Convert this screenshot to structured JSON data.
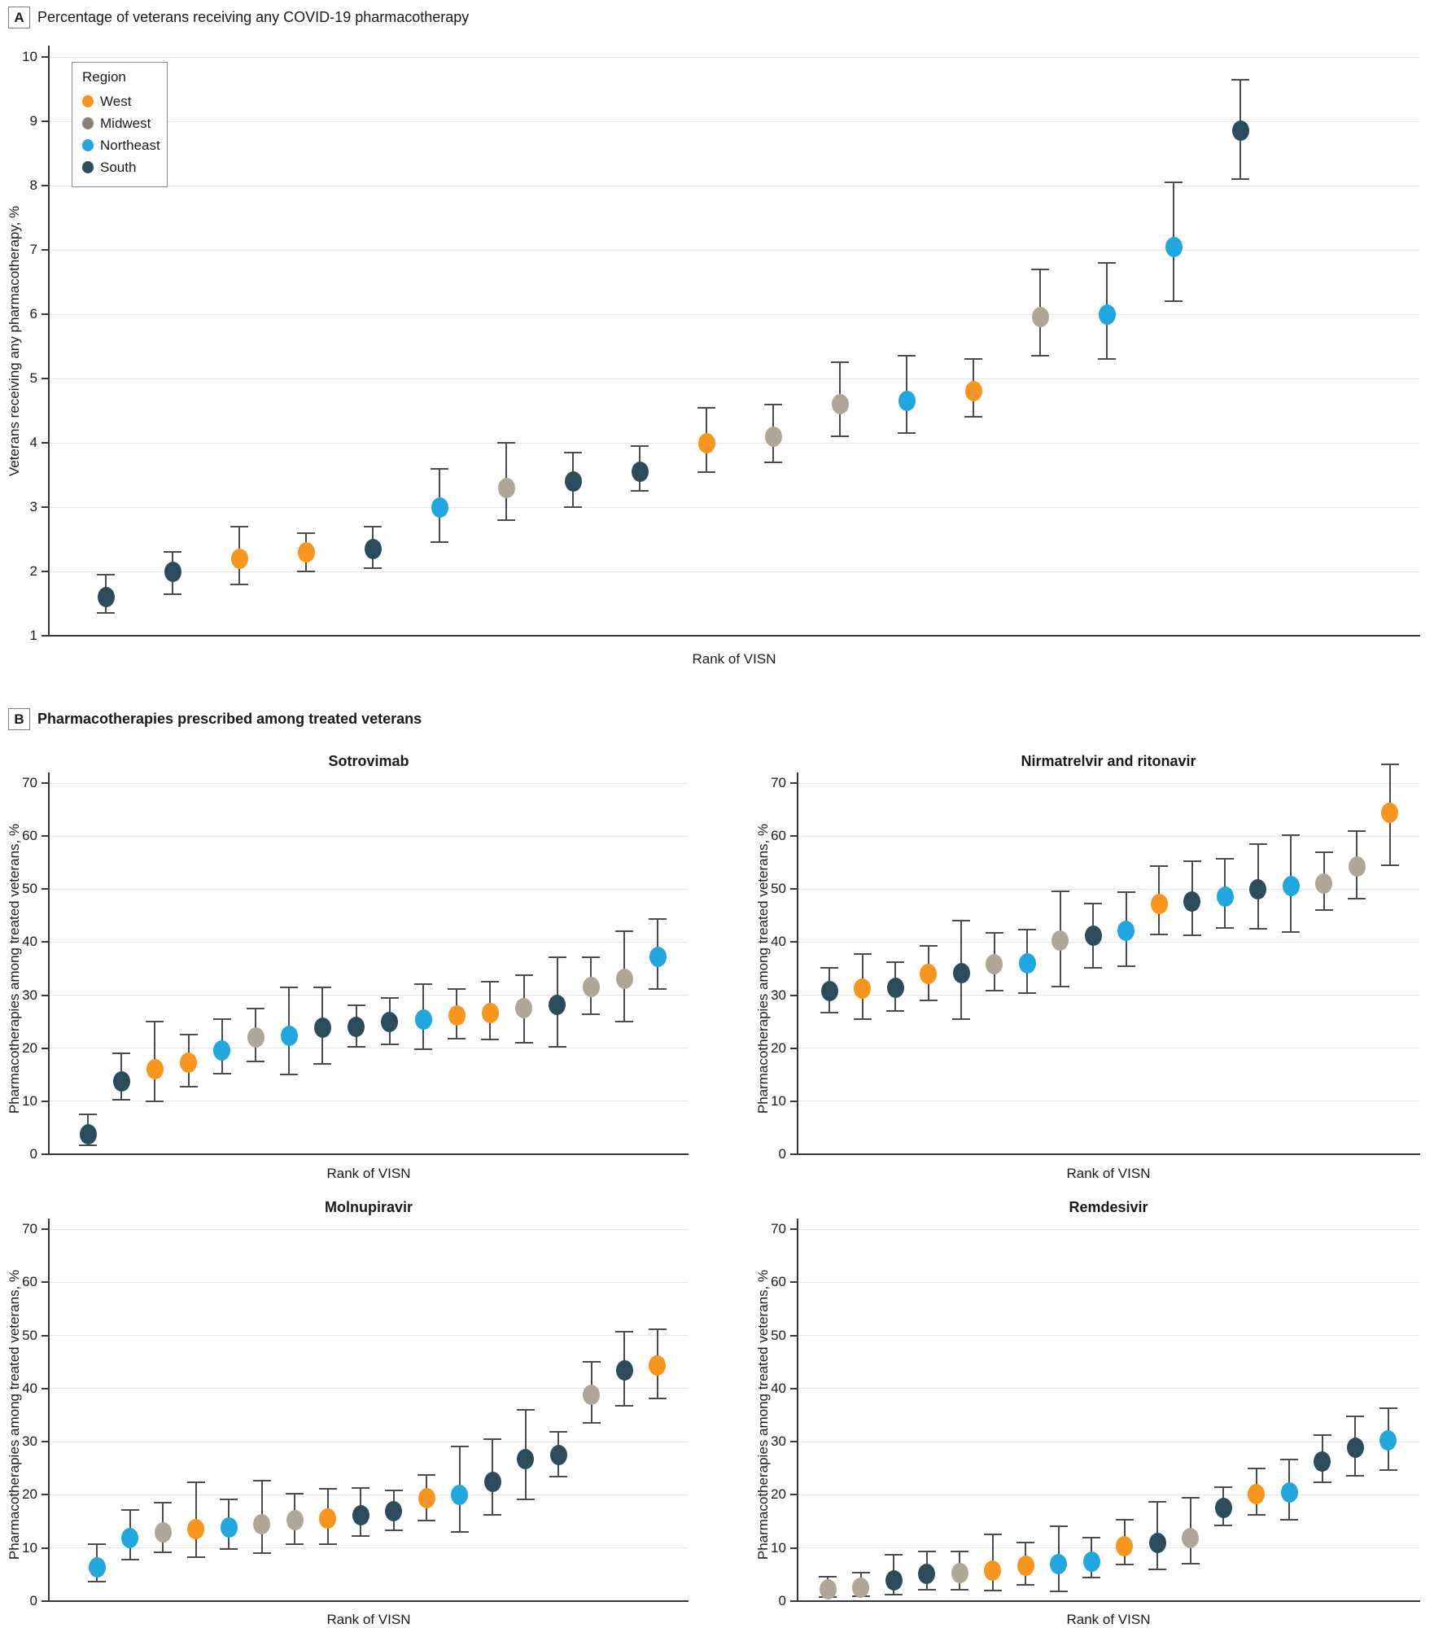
{
  "panelA": {
    "label": "A",
    "header": "Percentage of veterans receiving any COVID-19 pharmacotherapy"
  },
  "panelB": {
    "label": "B",
    "header": "Pharmacotherapies prescribed among treated veterans"
  },
  "legend": {
    "title": "Region",
    "items": [
      {
        "label": "West",
        "color": "#F7951D"
      },
      {
        "label": "Midwest",
        "color": "#8B8274"
      },
      {
        "label": "Northeast",
        "color": "#21A7E0"
      },
      {
        "label": "South",
        "color": "#2B4C5D"
      }
    ]
  },
  "regions": {
    "West": "#F7951D",
    "Midwest": "#B0A695",
    "Northeast": "#21A7E0",
    "South": "#2B4C5D"
  },
  "style_colors": {
    "errorbar": "#4A4B4D",
    "gridline": "#E6E6E6",
    "axis": "#37383A"
  },
  "chart_data": [
    {
      "id": "panel_a",
      "type": "scatter",
      "title": "",
      "xlabel": "Rank of VISN",
      "ylabel": "Veterans receiving any pharmacotherapy, %",
      "ylim": [
        1,
        10
      ],
      "yticks": [
        10,
        9,
        8,
        7,
        6,
        5,
        4,
        3,
        2,
        1
      ],
      "grid": true,
      "legend_position": "top-left-inside",
      "points": [
        {
          "rank": 1,
          "region": "South",
          "value": 1.6,
          "ci": [
            1.35,
            1.95
          ]
        },
        {
          "rank": 2,
          "region": "South",
          "value": 2.0,
          "ci": [
            1.65,
            2.3
          ]
        },
        {
          "rank": 3,
          "region": "West",
          "value": 2.2,
          "ci": [
            1.8,
            2.7
          ]
        },
        {
          "rank": 4,
          "region": "West",
          "value": 2.3,
          "ci": [
            2.0,
            2.6
          ]
        },
        {
          "rank": 5,
          "region": "South",
          "value": 2.35,
          "ci": [
            2.05,
            2.7
          ]
        },
        {
          "rank": 6,
          "region": "Northeast",
          "value": 3.0,
          "ci": [
            2.45,
            3.6
          ]
        },
        {
          "rank": 7,
          "region": "Midwest",
          "value": 3.3,
          "ci": [
            2.8,
            4.0
          ]
        },
        {
          "rank": 8,
          "region": "South",
          "value": 3.4,
          "ci": [
            3.0,
            3.85
          ]
        },
        {
          "rank": 9,
          "region": "South",
          "value": 3.55,
          "ci": [
            3.25,
            3.95
          ]
        },
        {
          "rank": 10,
          "region": "West",
          "value": 4.0,
          "ci": [
            3.55,
            4.55
          ]
        },
        {
          "rank": 11,
          "region": "Midwest",
          "value": 4.1,
          "ci": [
            3.7,
            4.6
          ]
        },
        {
          "rank": 12,
          "region": "Midwest",
          "value": 4.6,
          "ci": [
            4.1,
            5.25
          ]
        },
        {
          "rank": 13,
          "region": "Northeast",
          "value": 4.65,
          "ci": [
            4.15,
            5.35
          ]
        },
        {
          "rank": 14,
          "region": "West",
          "value": 4.8,
          "ci": [
            4.4,
            5.3
          ]
        },
        {
          "rank": 15,
          "region": "Midwest",
          "value": 5.95,
          "ci": [
            5.35,
            6.7
          ]
        },
        {
          "rank": 16,
          "region": "Northeast",
          "value": 6.0,
          "ci": [
            5.3,
            6.8
          ]
        },
        {
          "rank": 17,
          "region": "Northeast",
          "value": 7.05,
          "ci": [
            6.2,
            8.05
          ]
        },
        {
          "rank": 18,
          "region": "South",
          "value": 8.85,
          "ci": [
            8.1,
            9.65
          ]
        }
      ]
    },
    {
      "id": "sotrovimab",
      "type": "scatter",
      "title": "Sotrovimab",
      "xlabel": "Rank of VISN",
      "ylabel": "Pharmacotherapies among  treated veterans, %",
      "ylim": [
        0,
        70
      ],
      "yticks": [
        70,
        60,
        50,
        40,
        30,
        20,
        10,
        0
      ],
      "grid": true,
      "points": [
        {
          "rank": 1,
          "region": "South",
          "value": 3.7,
          "ci": [
            1.7,
            7.5
          ]
        },
        {
          "rank": 2,
          "region": "South",
          "value": 13.8,
          "ci": [
            10.3,
            19.0
          ]
        },
        {
          "rank": 3,
          "region": "West",
          "value": 16.0,
          "ci": [
            10.0,
            25.0
          ]
        },
        {
          "rank": 4,
          "region": "West",
          "value": 17.2,
          "ci": [
            12.8,
            22.5
          ]
        },
        {
          "rank": 5,
          "region": "Northeast",
          "value": 19.6,
          "ci": [
            15.2,
            25.5
          ]
        },
        {
          "rank": 6,
          "region": "Midwest",
          "value": 22.0,
          "ci": [
            17.5,
            27.5
          ]
        },
        {
          "rank": 7,
          "region": "Northeast",
          "value": 22.4,
          "ci": [
            15.0,
            31.5
          ]
        },
        {
          "rank": 8,
          "region": "South",
          "value": 23.8,
          "ci": [
            17.0,
            31.5
          ]
        },
        {
          "rank": 9,
          "region": "South",
          "value": 24.0,
          "ci": [
            20.3,
            28.1
          ]
        },
        {
          "rank": 10,
          "region": "South",
          "value": 24.9,
          "ci": [
            20.8,
            29.5
          ]
        },
        {
          "rank": 11,
          "region": "Northeast",
          "value": 25.4,
          "ci": [
            19.8,
            32.1
          ]
        },
        {
          "rank": 12,
          "region": "West",
          "value": 26.2,
          "ci": [
            21.8,
            31.1
          ]
        },
        {
          "rank": 13,
          "region": "West",
          "value": 26.6,
          "ci": [
            21.6,
            32.6
          ]
        },
        {
          "rank": 14,
          "region": "Midwest",
          "value": 27.5,
          "ci": [
            21.1,
            33.8
          ]
        },
        {
          "rank": 15,
          "region": "South",
          "value": 28.2,
          "ci": [
            20.2,
            37.2
          ]
        },
        {
          "rank": 16,
          "region": "Midwest",
          "value": 31.6,
          "ci": [
            26.4,
            37.2
          ]
        },
        {
          "rank": 17,
          "region": "Midwest",
          "value": 33.1,
          "ci": [
            25.0,
            42.0
          ]
        },
        {
          "rank": 18,
          "region": "Northeast",
          "value": 37.3,
          "ci": [
            31.1,
            44.3
          ]
        }
      ]
    },
    {
      "id": "nirmatrelvir",
      "type": "scatter",
      "title": "Nirmatrelvir and ritonavir",
      "xlabel": "Rank of VISN",
      "ylabel": "Pharmacotherapies among  treated veterans, %",
      "ylim": [
        0,
        70
      ],
      "yticks": [
        70,
        60,
        50,
        40,
        30,
        20,
        10,
        0
      ],
      "grid": true,
      "points": [
        {
          "rank": 1,
          "region": "South",
          "value": 30.8,
          "ci": [
            26.7,
            35.2
          ]
        },
        {
          "rank": 2,
          "region": "West",
          "value": 31.2,
          "ci": [
            25.5,
            37.8
          ]
        },
        {
          "rank": 3,
          "region": "South",
          "value": 31.4,
          "ci": [
            27.0,
            36.2
          ]
        },
        {
          "rank": 4,
          "region": "West",
          "value": 34.0,
          "ci": [
            29.0,
            39.3
          ]
        },
        {
          "rank": 5,
          "region": "South",
          "value": 34.2,
          "ci": [
            25.5,
            44.0
          ]
        },
        {
          "rank": 6,
          "region": "Midwest",
          "value": 35.9,
          "ci": [
            30.8,
            41.8
          ]
        },
        {
          "rank": 7,
          "region": "Northeast",
          "value": 36.0,
          "ci": [
            30.4,
            42.4
          ]
        },
        {
          "rank": 8,
          "region": "Midwest",
          "value": 40.3,
          "ci": [
            31.6,
            49.6
          ]
        },
        {
          "rank": 9,
          "region": "South",
          "value": 41.2,
          "ci": [
            35.2,
            47.3
          ]
        },
        {
          "rank": 10,
          "region": "Northeast",
          "value": 42.2,
          "ci": [
            35.4,
            49.5
          ]
        },
        {
          "rank": 11,
          "region": "West",
          "value": 47.2,
          "ci": [
            41.5,
            54.3
          ]
        },
        {
          "rank": 12,
          "region": "South",
          "value": 47.6,
          "ci": [
            41.3,
            55.2
          ]
        },
        {
          "rank": 13,
          "region": "Northeast",
          "value": 48.6,
          "ci": [
            42.7,
            55.8
          ]
        },
        {
          "rank": 14,
          "region": "South",
          "value": 49.9,
          "ci": [
            42.5,
            58.5
          ]
        },
        {
          "rank": 15,
          "region": "Northeast",
          "value": 50.6,
          "ci": [
            41.9,
            60.2
          ]
        },
        {
          "rank": 16,
          "region": "Midwest",
          "value": 51.1,
          "ci": [
            46.1,
            57.0
          ]
        },
        {
          "rank": 17,
          "region": "Midwest",
          "value": 54.2,
          "ci": [
            48.2,
            61.0
          ]
        },
        {
          "rank": 18,
          "region": "West",
          "value": 64.4,
          "ci": [
            54.5,
            73.5
          ]
        }
      ]
    },
    {
      "id": "molnupiravir",
      "type": "scatter",
      "title": "Molnupiravir",
      "xlabel": "Rank of VISN",
      "ylabel": "Pharmacotherapies among  treated veterans, %",
      "ylim": [
        0,
        70
      ],
      "yticks": [
        70,
        60,
        50,
        40,
        30,
        20,
        10,
        0
      ],
      "grid": true,
      "points": [
        {
          "rank": 1,
          "region": "Northeast",
          "value": 6.4,
          "ci": [
            3.6,
            10.7
          ]
        },
        {
          "rank": 2,
          "region": "Northeast",
          "value": 11.8,
          "ci": [
            7.8,
            17.2
          ]
        },
        {
          "rank": 3,
          "region": "Midwest",
          "value": 13.0,
          "ci": [
            9.2,
            18.5
          ]
        },
        {
          "rank": 4,
          "region": "West",
          "value": 13.6,
          "ci": [
            8.2,
            22.4
          ]
        },
        {
          "rank": 5,
          "region": "Northeast",
          "value": 13.9,
          "ci": [
            9.8,
            19.2
          ]
        },
        {
          "rank": 6,
          "region": "Midwest",
          "value": 14.5,
          "ci": [
            9.1,
            22.6
          ]
        },
        {
          "rank": 7,
          "region": "Midwest",
          "value": 15.2,
          "ci": [
            10.7,
            20.2
          ]
        },
        {
          "rank": 8,
          "region": "West",
          "value": 15.6,
          "ci": [
            10.7,
            21.1
          ]
        },
        {
          "rank": 9,
          "region": "South",
          "value": 16.1,
          "ci": [
            12.2,
            21.3
          ]
        },
        {
          "rank": 10,
          "region": "South",
          "value": 16.9,
          "ci": [
            13.3,
            20.8
          ]
        },
        {
          "rank": 11,
          "region": "West",
          "value": 19.3,
          "ci": [
            15.2,
            23.8
          ]
        },
        {
          "rank": 12,
          "region": "Northeast",
          "value": 20.0,
          "ci": [
            13.0,
            29.1
          ]
        },
        {
          "rank": 13,
          "region": "South",
          "value": 22.5,
          "ci": [
            16.3,
            30.5
          ]
        },
        {
          "rank": 14,
          "region": "South",
          "value": 26.7,
          "ci": [
            19.2,
            36.0
          ]
        },
        {
          "rank": 15,
          "region": "South",
          "value": 27.5,
          "ci": [
            23.4,
            31.9
          ]
        },
        {
          "rank": 16,
          "region": "Midwest",
          "value": 38.9,
          "ci": [
            33.6,
            45.0
          ]
        },
        {
          "rank": 17,
          "region": "South",
          "value": 43.4,
          "ci": [
            36.8,
            50.7
          ]
        },
        {
          "rank": 18,
          "region": "West",
          "value": 44.3,
          "ci": [
            38.2,
            51.1
          ]
        }
      ]
    },
    {
      "id": "remdesivir",
      "type": "scatter",
      "title": "Remdesivir",
      "xlabel": "Rank of VISN",
      "ylabel": "Pharmacotherapies among  treated veterans, %",
      "ylim": [
        0,
        70
      ],
      "yticks": [
        70,
        60,
        50,
        40,
        30,
        20,
        10,
        0
      ],
      "grid": true,
      "points": [
        {
          "rank": 1,
          "region": "Midwest",
          "value": 2.2,
          "ci": [
            0.7,
            4.6
          ]
        },
        {
          "rank": 2,
          "region": "Midwest",
          "value": 2.6,
          "ci": [
            0.9,
            5.4
          ]
        },
        {
          "rank": 3,
          "region": "South",
          "value": 3.9,
          "ci": [
            1.2,
            8.7
          ]
        },
        {
          "rank": 4,
          "region": "South",
          "value": 5.1,
          "ci": [
            2.2,
            9.4
          ]
        },
        {
          "rank": 5,
          "region": "Midwest",
          "value": 5.3,
          "ci": [
            2.2,
            9.3
          ]
        },
        {
          "rank": 6,
          "region": "West",
          "value": 5.7,
          "ci": [
            2.0,
            12.5
          ]
        },
        {
          "rank": 7,
          "region": "West",
          "value": 6.7,
          "ci": [
            3.1,
            11.0
          ]
        },
        {
          "rank": 8,
          "region": "Northeast",
          "value": 7.0,
          "ci": [
            1.9,
            14.1
          ]
        },
        {
          "rank": 9,
          "region": "Northeast",
          "value": 7.5,
          "ci": [
            4.5,
            12.0
          ]
        },
        {
          "rank": 10,
          "region": "West",
          "value": 10.4,
          "ci": [
            6.9,
            15.3
          ]
        },
        {
          "rank": 11,
          "region": "South",
          "value": 10.9,
          "ci": [
            6.0,
            18.7
          ]
        },
        {
          "rank": 12,
          "region": "Midwest",
          "value": 11.9,
          "ci": [
            7.0,
            19.4
          ]
        },
        {
          "rank": 13,
          "region": "South",
          "value": 17.5,
          "ci": [
            14.2,
            21.5
          ]
        },
        {
          "rank": 14,
          "region": "West",
          "value": 20.2,
          "ci": [
            16.2,
            24.9
          ]
        },
        {
          "rank": 15,
          "region": "Northeast",
          "value": 20.4,
          "ci": [
            15.3,
            26.6
          ]
        },
        {
          "rank": 16,
          "region": "South",
          "value": 26.3,
          "ci": [
            22.4,
            31.3
          ]
        },
        {
          "rank": 17,
          "region": "South",
          "value": 28.9,
          "ci": [
            23.6,
            34.8
          ]
        },
        {
          "rank": 18,
          "region": "Northeast",
          "value": 30.3,
          "ci": [
            24.6,
            36.3
          ]
        }
      ]
    }
  ]
}
